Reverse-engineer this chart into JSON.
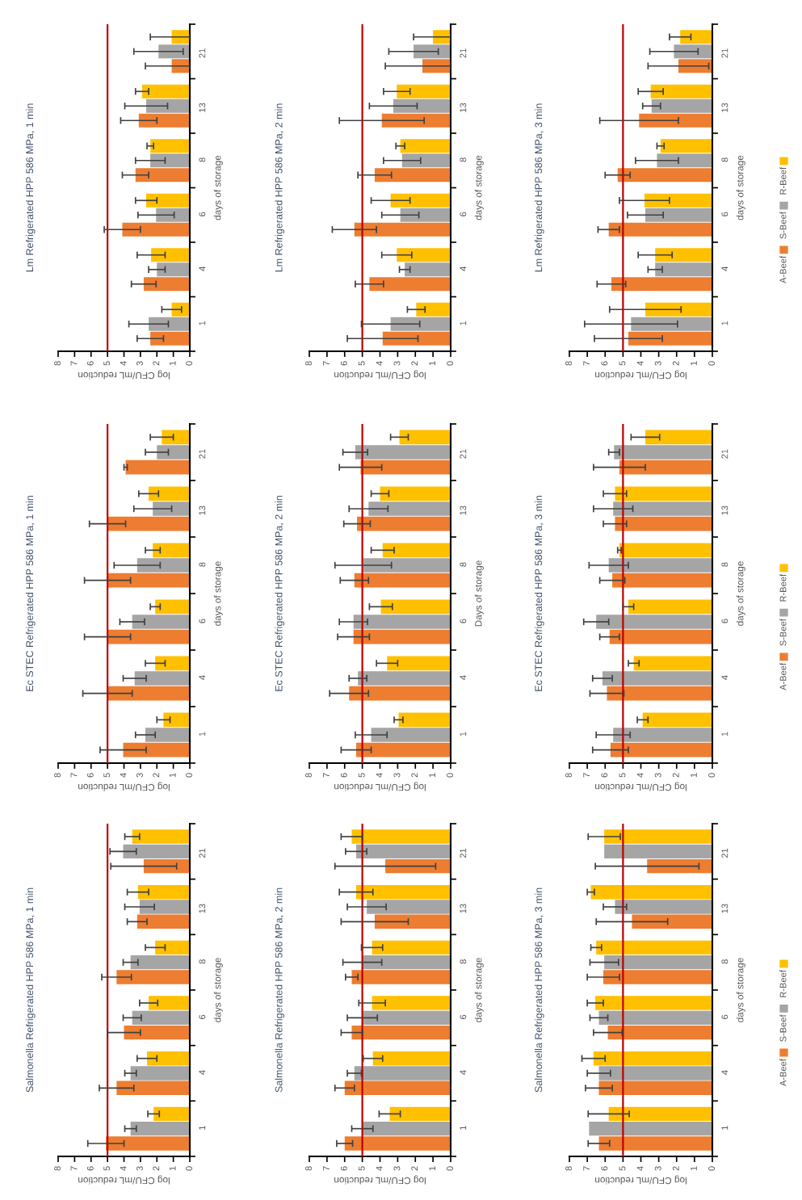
{
  "chart_data": [
    {
      "type": "bar",
      "orientation": "horizontal",
      "title": "Lm Refrigerated HPP 586 MPa, 1 min",
      "xlabel": "log CFU/mL reduction",
      "ylabel": "days of storage",
      "categories": [
        "21",
        "13",
        "8",
        "6",
        "4",
        "1"
      ],
      "xlim": [
        8,
        0
      ],
      "xticks": [
        8,
        7,
        6,
        5,
        4,
        3,
        2,
        1,
        0
      ],
      "ref_lines": [
        {
          "axis": "x",
          "value": 5,
          "color": "#c00000"
        }
      ],
      "series": [
        {
          "color": "#ed7d31",
          "values": [
            1.1,
            3.1,
            3.3,
            4.1,
            2.8,
            2.4
          ],
          "errors": [
            [
              0,
              2.7
            ],
            1.1,
            0.8,
            1.1,
            0.75,
            0.8
          ]
        },
        {
          "color": "#a5a5a5",
          "values": [
            1.9,
            2.65,
            2.4,
            2.05,
            2.0,
            2.5
          ],
          "errors": [
            1.5,
            1.3,
            0.9,
            1.1,
            0.5,
            1.2
          ]
        },
        {
          "color": "#ffc000",
          "values": [
            1.1,
            2.9,
            2.4,
            2.65,
            2.35,
            1.1
          ],
          "errors": [
            [
              0,
              2.4
            ],
            0.4,
            0.2,
            0.65,
            0.85,
            0.6
          ]
        }
      ]
    },
    {
      "type": "bar",
      "orientation": "horizontal",
      "title": "Lm Refrigerated HPP 586 MPa, 2 min",
      "xlabel": "log CFU/mL reduction",
      "ylabel": "days of storage",
      "categories": [
        "21",
        "13",
        "8",
        "6",
        "4",
        "1"
      ],
      "xlim": [
        8,
        0
      ],
      "xticks": [
        8,
        7,
        6,
        5,
        4,
        3,
        2,
        1,
        0
      ],
      "ref_lines": [
        {
          "axis": "x",
          "value": 5,
          "color": "#c00000"
        }
      ],
      "series": [
        {
          "color": "#ed7d31",
          "values": [
            1.6,
            3.9,
            4.3,
            5.45,
            4.6,
            3.85
          ],
          "errors": [
            [
              0,
              3.7
            ],
            2.4,
            0.95,
            1.25,
            0.8,
            2.0
          ]
        },
        {
          "color": "#a5a5a5",
          "values": [
            2.1,
            3.25,
            2.75,
            2.85,
            2.6,
            3.4
          ],
          "errors": [
            1.4,
            1.35,
            1.05,
            1.05,
            0.3,
            1.65
          ]
        },
        {
          "color": "#ffc000",
          "values": [
            1.0,
            3.05,
            2.85,
            3.4,
            3.05,
            1.95
          ],
          "errors": [
            [
              0,
              2.1
            ],
            0.75,
            0.25,
            1.1,
            0.85,
            0.5
          ]
        }
      ]
    },
    {
      "type": "bar",
      "orientation": "horizontal",
      "title": "Lm Refrigerated HPP 586 MPa, 3 min",
      "xlabel": "log CFU/mL reduction",
      "ylabel": "days of storage",
      "categories": [
        "21",
        "13",
        "8",
        "6",
        "4",
        "1"
      ],
      "xlim": [
        8,
        0
      ],
      "xticks": [
        8,
        7,
        6,
        5,
        4,
        3,
        2,
        1,
        0
      ],
      "ref_lines": [
        {
          "axis": "x",
          "value": 5,
          "color": "#c00000"
        }
      ],
      "legend": "right",
      "series": [
        {
          "name": "A-Beef",
          "color": "#ed7d31",
          "values": [
            1.9,
            4.1,
            5.3,
            5.8,
            5.65,
            4.7
          ],
          "errors": [
            1.7,
            2.2,
            0.7,
            0.6,
            0.8,
            1.9
          ]
        },
        {
          "name": "S-Beef",
          "color": "#a5a5a5",
          "values": [
            2.15,
            3.4,
            3.1,
            3.75,
            3.2,
            4.55
          ],
          "errors": [
            1.35,
            0.5,
            1.2,
            1.0,
            0.4,
            2.6
          ]
        },
        {
          "name": "R-Beef",
          "color": "#ffc000",
          "values": [
            1.8,
            3.45,
            2.9,
            3.8,
            3.2,
            3.75
          ],
          "errors": [
            0.6,
            0.7,
            0.2,
            1.4,
            0.95,
            2.0
          ]
        }
      ]
    },
    {
      "type": "bar",
      "orientation": "horizontal",
      "title": "Ec STEC Refrigerated HPP 586 MPa, 1 min",
      "xlabel": "log CFU/mL reduction",
      "ylabel": "days of storage",
      "categories": [
        "21",
        "13",
        "8",
        "6",
        "4",
        "1"
      ],
      "xlim": [
        8,
        0
      ],
      "xticks": [
        8,
        7,
        6,
        5,
        4,
        3,
        2,
        1,
        0
      ],
      "ref_lines": [
        {
          "axis": "x",
          "value": 5,
          "color": "#c00000"
        }
      ],
      "series": [
        {
          "color": "#ed7d31",
          "values": [
            3.9,
            5.0,
            5.0,
            5.0,
            5.0,
            4.05
          ],
          "errors": [
            0.1,
            1.1,
            1.4,
            1.4,
            1.5,
            1.4
          ]
        },
        {
          "color": "#a5a5a5",
          "values": [
            2.0,
            2.25,
            3.2,
            3.5,
            3.35,
            2.7
          ],
          "errors": [
            0.7,
            1.15,
            1.4,
            0.75,
            0.7,
            0.6
          ]
        },
        {
          "color": "#ffc000",
          "values": [
            1.7,
            2.5,
            2.25,
            2.1,
            2.1,
            1.6
          ],
          "errors": [
            0.7,
            0.6,
            0.45,
            0.3,
            0.6,
            0.4
          ]
        }
      ]
    },
    {
      "type": "bar",
      "orientation": "horizontal",
      "title": "Ec STEC Refrigerated HPP 586 MPa, 2 min",
      "xlabel": "log CFU/mL reduction",
      "ylabel": "Days of storage",
      "categories": [
        "21",
        "13",
        "8",
        "6",
        "4",
        "1"
      ],
      "xlim": [
        8,
        0
      ],
      "xticks": [
        8,
        7,
        6,
        5,
        4,
        3,
        2,
        1,
        0
      ],
      "ref_lines": [
        {
          "axis": "x",
          "value": 5,
          "color": "#c00000"
        }
      ],
      "series": [
        {
          "color": "#ed7d31",
          "values": [
            5.1,
            5.3,
            5.45,
            5.5,
            5.75,
            5.35
          ],
          "errors": [
            1.2,
            0.75,
            0.8,
            0.9,
            1.1,
            0.85
          ]
        },
        {
          "color": "#a5a5a5",
          "values": [
            5.4,
            4.65,
            4.95,
            5.5,
            5.25,
            4.5
          ],
          "errors": [
            0.7,
            1.1,
            1.6,
            0.8,
            0.5,
            0.9
          ]
        },
        {
          "color": "#ffc000",
          "values": [
            2.9,
            4.0,
            3.85,
            3.95,
            3.6,
            2.95
          ],
          "errors": [
            0.5,
            0.5,
            0.65,
            0.65,
            0.6,
            0.25
          ]
        }
      ]
    },
    {
      "type": "bar",
      "orientation": "horizontal",
      "title": "Ec STEC Refrigerated HPP 586 MPa, 3 min",
      "xlabel": "log CFU/mL reduction",
      "ylabel": "days of storage",
      "categories": [
        "21",
        "13",
        "8",
        "6",
        "4",
        "1"
      ],
      "xlim": [
        8,
        0
      ],
      "xticks": [
        8,
        7,
        6,
        5,
        4,
        3,
        2,
        1,
        0
      ],
      "ref_lines": [
        {
          "axis": "x",
          "value": 5,
          "color": "#c00000"
        }
      ],
      "legend": "right",
      "series": [
        {
          "name": "A-Beef",
          "color": "#ed7d31",
          "values": [
            5.2,
            5.45,
            5.6,
            5.75,
            5.9,
            5.7
          ],
          "errors": [
            1.45,
            0.65,
            0.7,
            0.55,
            0.95,
            1.0
          ]
        },
        {
          "name": "S-Beef",
          "color": "#a5a5a5",
          "values": [
            5.5,
            5.55,
            5.8,
            6.5,
            6.15,
            5.55
          ],
          "errors": [
            0.3,
            1.1,
            1.1,
            0.7,
            0.55,
            0.95
          ]
        },
        {
          "name": "R-Beef",
          "color": "#ffc000",
          "values": [
            3.75,
            5.45,
            5.2,
            4.7,
            4.4,
            3.9
          ],
          "errors": [
            0.8,
            0.65,
            0.1,
            0.3,
            0.3,
            0.3
          ]
        }
      ]
    },
    {
      "type": "bar",
      "orientation": "horizontal",
      "title": "Salmonella Refrigerated HPP 586 MPa, 1 min",
      "xlabel": "log CFU/mL reduction",
      "ylabel": "days of storage",
      "categories": [
        "21",
        "13",
        "8",
        "6",
        "4",
        "1"
      ],
      "xlim": [
        8,
        0
      ],
      "xticks": [
        8,
        7,
        6,
        5,
        4,
        3,
        2,
        1,
        0
      ],
      "ref_lines": [
        {
          "axis": "x",
          "value": 5,
          "color": "#c00000"
        }
      ],
      "series": [
        {
          "color": "#ed7d31",
          "values": [
            2.8,
            3.2,
            4.45,
            4.0,
            4.45,
            5.1
          ],
          "errors": [
            2.0,
            0.6,
            0.9,
            1.0,
            1.05,
            1.1
          ]
        },
        {
          "color": "#a5a5a5",
          "values": [
            4.05,
            3.05,
            3.6,
            3.5,
            3.6,
            3.6
          ],
          "errors": [
            0.8,
            0.9,
            0.45,
            0.55,
            0.35,
            0.35
          ]
        },
        {
          "color": "#ffc000",
          "values": [
            3.5,
            3.15,
            2.1,
            2.5,
            2.6,
            2.2
          ],
          "errors": [
            0.45,
            0.65,
            0.6,
            0.55,
            0.6,
            0.35
          ]
        }
      ]
    },
    {
      "type": "bar",
      "orientation": "horizontal",
      "title": "Salmonella Refrigerated HPP 586 MPa, 2 min",
      "xlabel": "log CFU/mL reduction",
      "ylabel": "days of storage",
      "categories": [
        "21",
        "13",
        "8",
        "6",
        "4",
        "1"
      ],
      "xlim": [
        8,
        0
      ],
      "xticks": [
        8,
        7,
        6,
        5,
        4,
        3,
        2,
        1,
        0
      ],
      "ref_lines": [
        {
          "axis": "x",
          "value": 5,
          "color": "#c00000"
        }
      ],
      "series": [
        {
          "color": "#ed7d31",
          "values": [
            3.7,
            4.3,
            5.6,
            5.6,
            6.0,
            6.0
          ],
          "errors": [
            2.85,
            1.9,
            0.35,
            0.6,
            0.55,
            0.45
          ]
        },
        {
          "color": "#a5a5a5",
          "values": [
            5.35,
            4.75,
            5.0,
            5.0,
            5.45,
            5.0
          ],
          "errors": [
            0.6,
            1.1,
            1.1,
            0.85,
            0.4,
            0.6
          ]
        },
        {
          "color": "#ffc000",
          "values": [
            5.6,
            5.35,
            4.45,
            4.45,
            4.4,
            3.45
          ],
          "errors": [
            0.6,
            0.95,
            0.6,
            0.75,
            0.55,
            0.6
          ]
        }
      ]
    },
    {
      "type": "bar",
      "orientation": "horizontal",
      "title": "Salmonella Refrigerated HPP 586 MPa, 3 min",
      "xlabel": "log CFU/mL reduction",
      "ylabel": "days of storage",
      "categories": [
        "21",
        "13",
        "8",
        "6",
        "4",
        "1"
      ],
      "xlim": [
        8,
        0
      ],
      "xticks": [
        8,
        7,
        6,
        5,
        4,
        3,
        2,
        1,
        0
      ],
      "ref_lines": [
        {
          "axis": "x",
          "value": 5,
          "color": "#c00000"
        }
      ],
      "legend": "right",
      "series": [
        {
          "name": "A-Beef",
          "color": "#ed7d31",
          "values": [
            3.65,
            4.5,
            6.1,
            5.85,
            6.35,
            6.35
          ],
          "errors": [
            2.9,
            2.0,
            0.9,
            0.8,
            0.75,
            0.6
          ]
        },
        {
          "name": "S-Beef",
          "color": "#a5a5a5",
          "values": [
            6.05,
            5.45,
            6.05,
            6.35,
            6.35,
            6.9
          ],
          "errors": [
            null,
            0.65,
            0.8,
            0.5,
            0.65,
            null
          ]
        },
        {
          "name": "R-Beef",
          "color": "#ffc000",
          "values": [
            6.05,
            6.8,
            6.5,
            6.55,
            6.65,
            5.8
          ],
          "errors": [
            0.9,
            0.2,
            0.3,
            0.45,
            0.65,
            1.15
          ]
        }
      ]
    }
  ]
}
